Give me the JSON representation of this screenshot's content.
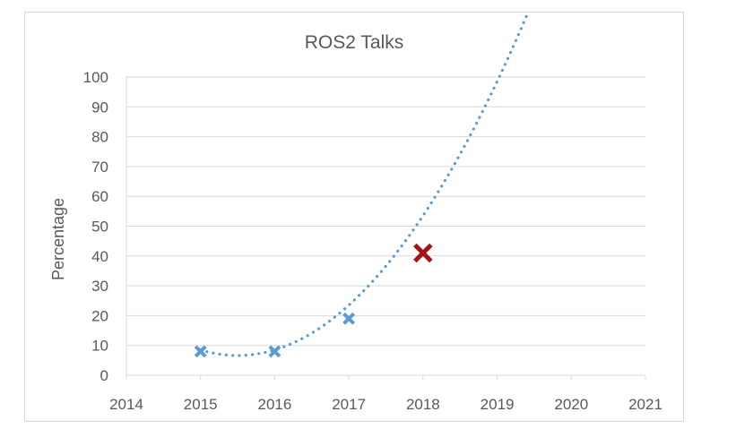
{
  "chart_data": {
    "type": "scatter",
    "title": "ROS2 Talks",
    "xlabel": "",
    "ylabel": "Percentage",
    "xlim": [
      2014,
      2021
    ],
    "ylim": [
      0,
      100
    ],
    "x_ticks": [
      "2014",
      "2015",
      "2016",
      "2017",
      "2018",
      "2019",
      "2020",
      "2021"
    ],
    "y_ticks": [
      "0",
      "10",
      "20",
      "30",
      "40",
      "50",
      "60",
      "70",
      "80",
      "90",
      "100"
    ],
    "grid": true,
    "legend": "none",
    "series": [
      {
        "marker": "x",
        "color": "#5b9bd5",
        "points": [
          {
            "x": 2015,
            "y": 8
          },
          {
            "x": 2016,
            "y": 8
          },
          {
            "x": 2017,
            "y": 19
          }
        ]
      },
      {
        "marker": "x",
        "color": "#a31616",
        "points": [
          {
            "x": 2018,
            "y": 41
          }
        ]
      }
    ],
    "trendline": {
      "style": "dotted",
      "color": "#5b9bd5",
      "type": "polynomial",
      "x_range": [
        2015,
        2019.65
      ],
      "coefficients": [
        8.5,
        -7.5,
        7.5
      ]
    }
  }
}
